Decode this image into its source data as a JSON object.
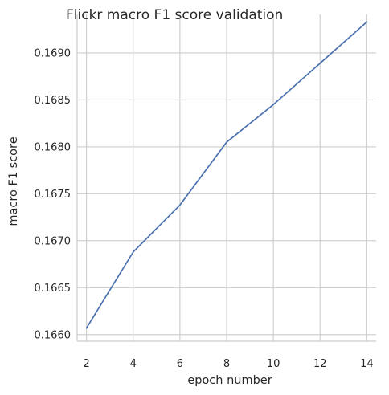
{
  "chart_data": {
    "type": "line",
    "title": "Flickr macro F1 score validation",
    "xlabel": "epoch number",
    "ylabel": "macro F1 score",
    "x": [
      2,
      4,
      6,
      8,
      10,
      12,
      14
    ],
    "series": [
      {
        "values": [
          0.16607,
          0.16688,
          0.16738,
          0.16805,
          0.16845,
          0.16889,
          0.16933
        ]
      }
    ],
    "xticks": [
      "2",
      "4",
      "6",
      "8",
      "10",
      "12",
      "14"
    ],
    "yticks": [
      "0.1660",
      "0.1665",
      "0.1670",
      "0.1675",
      "0.1680",
      "0.1685",
      "0.1690"
    ],
    "xlim": [
      1.6,
      14.4
    ],
    "ylim": [
      0.16593,
      0.16941
    ],
    "grid": true,
    "colors": {
      "line": "#4c72b0",
      "grid": "#cccccc",
      "text": "#262626"
    }
  }
}
